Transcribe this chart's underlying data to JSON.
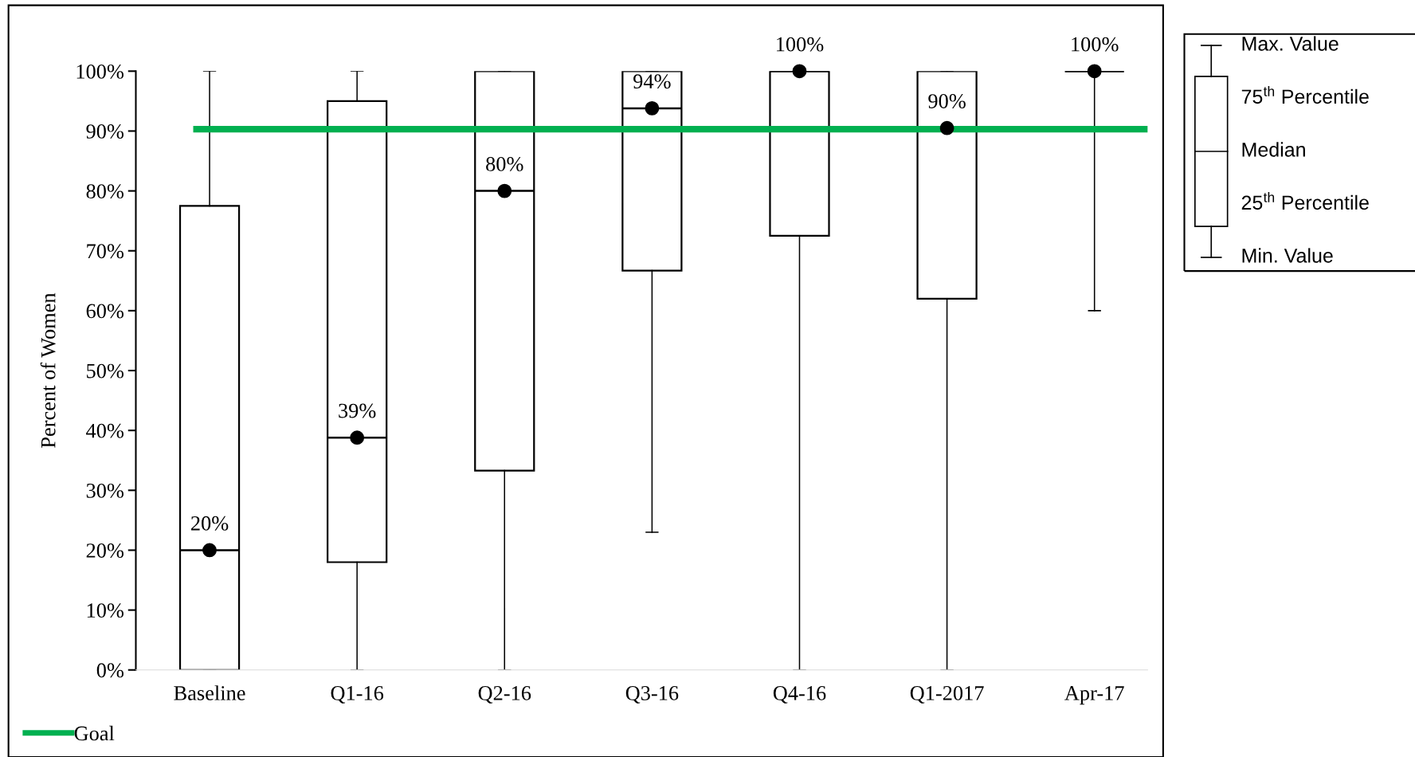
{
  "chart_data": {
    "type": "box",
    "ylabel": "Percent of Women",
    "color": "#000000",
    "categories": [
      "Baseline",
      "Q1-16",
      "Q2-16",
      "Q3-16",
      "Q4-16",
      "Q1-2017",
      "Apr-17"
    ],
    "boxes": [
      {
        "low": 0,
        "q1": 0,
        "median": 20,
        "q3": 77.5,
        "high": 100
      },
      {
        "low": 0,
        "q1": 18,
        "median": 38.8,
        "q3": 95,
        "high": 100
      },
      {
        "low": 0,
        "q1": 33.3,
        "median": 80,
        "q3": 100,
        "high": 100
      },
      {
        "low": 23,
        "q1": 66.7,
        "median": 93.8,
        "q3": 100,
        "high": 100
      },
      {
        "low": 0,
        "q1": 72.5,
        "median": 100,
        "q3": 100,
        "high": 100
      },
      {
        "low": 0,
        "q1": 62,
        "median": 90.5,
        "q3": 100,
        "high": 100
      },
      {
        "low": 60,
        "q1": 100,
        "median": 100,
        "q3": 100,
        "high": 100
      }
    ],
    "series": [
      {
        "type": "scatter",
        "color": "#000000",
        "x": [
          "Baseline",
          "Q1-16",
          "Q2-16",
          "Q3-16",
          "Q4-16",
          "Q1-2017",
          "Apr-17"
        ],
        "values": [
          20,
          38.8,
          80,
          93.8,
          100,
          90.5,
          100
        ],
        "value_labels": [
          "20%",
          "39%",
          "80%",
          "94%",
          "100%",
          "90%",
          "100%"
        ],
        "marker": "circle"
      }
    ],
    "ref_lines": [
      {
        "axis": "y",
        "value": 90.3,
        "label": "Goal",
        "color": "#00b050",
        "line_style": "solid"
      }
    ],
    "ylim": [
      0,
      100
    ],
    "yticks": [
      {
        "value": 0,
        "label": "0%"
      },
      {
        "value": 10,
        "label": "10%"
      },
      {
        "value": 20,
        "label": "20%"
      },
      {
        "value": 30,
        "label": "30%"
      },
      {
        "value": 40,
        "label": "40%"
      },
      {
        "value": 50,
        "label": "50%"
      },
      {
        "value": 60,
        "label": "60%"
      },
      {
        "value": 70,
        "label": "70%"
      },
      {
        "value": 80,
        "label": "80%"
      },
      {
        "value": 90,
        "label": "90%"
      },
      {
        "value": 100,
        "label": "100%"
      }
    ],
    "grid": false,
    "legend": "bottom left",
    "annotations": [
      "Max. Value",
      "75$^{th}$ Percentile",
      "Median",
      "25$^{th}$ Percentile",
      "Min. Value"
    ]
  }
}
